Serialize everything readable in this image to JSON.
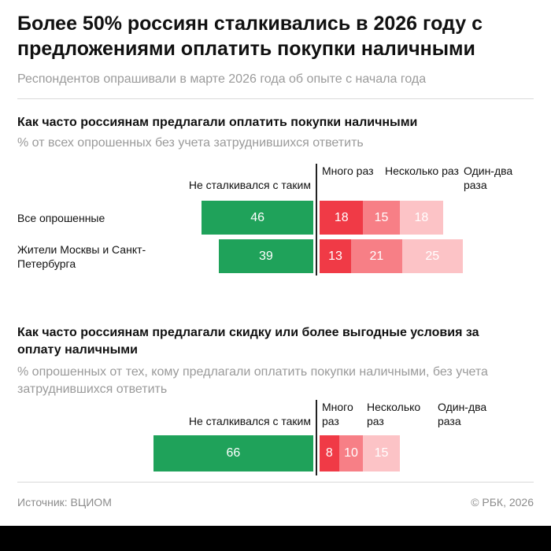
{
  "header": {
    "title": "Более 50% россиян сталкивались в 2026 году с предложениями оплатить покупки наличными",
    "subtitle": "Респондентов опрашивали в марте 2026 года об опыте с начала года"
  },
  "section1": {
    "title": "Как часто россиянам предлагали оплатить покупки наличными",
    "note": "% от всех опрошенных без учета затруднившихся ответить"
  },
  "section2": {
    "title": "Как часто россиянам предлагали скидку или более выгодные условия за оплату наличными",
    "note": "% опрошенных от тех, кому предлагали оплатить покупки наличными, без учета затруднившихся ответить"
  },
  "footer": {
    "source": "Источник: ВЦИОМ",
    "copyright": "© РБК, 2026"
  },
  "chart_data": [
    {
      "type": "bar",
      "stacked": true,
      "orientation": "horizontal",
      "title": "Как часто россиянам предлагали оплатить покупки наличными",
      "categories": [
        "Все опрошенные",
        "Жители Москвы и Санкт-Петербурга"
      ],
      "series": [
        {
          "name": "Не сталкивался с таким",
          "values": [
            46,
            39
          ],
          "color": "#1fa25a"
        },
        {
          "name": "Много раз",
          "values": [
            18,
            13
          ],
          "color": "#f03a46"
        },
        {
          "name": "Несколько раз",
          "values": [
            15,
            21
          ],
          "color": "#f77f86"
        },
        {
          "name": "Один-два раза",
          "values": [
            18,
            25
          ],
          "color": "#fcc3c6"
        }
      ]
    },
    {
      "type": "bar",
      "stacked": true,
      "orientation": "horizontal",
      "title": "Как часто россиянам предлагали скидку или более выгодные условия за оплату наличными",
      "categories": [
        ""
      ],
      "series": [
        {
          "name": "Не сталкивался с таким",
          "values": [
            66
          ],
          "color": "#1fa25a"
        },
        {
          "name": "Много раз",
          "values": [
            8
          ],
          "color": "#f03a46"
        },
        {
          "name": "Несколько раз",
          "values": [
            10
          ],
          "color": "#f77f86"
        },
        {
          "name": "Один-два раза",
          "values": [
            15
          ],
          "color": "#fcc3c6"
        }
      ]
    }
  ]
}
